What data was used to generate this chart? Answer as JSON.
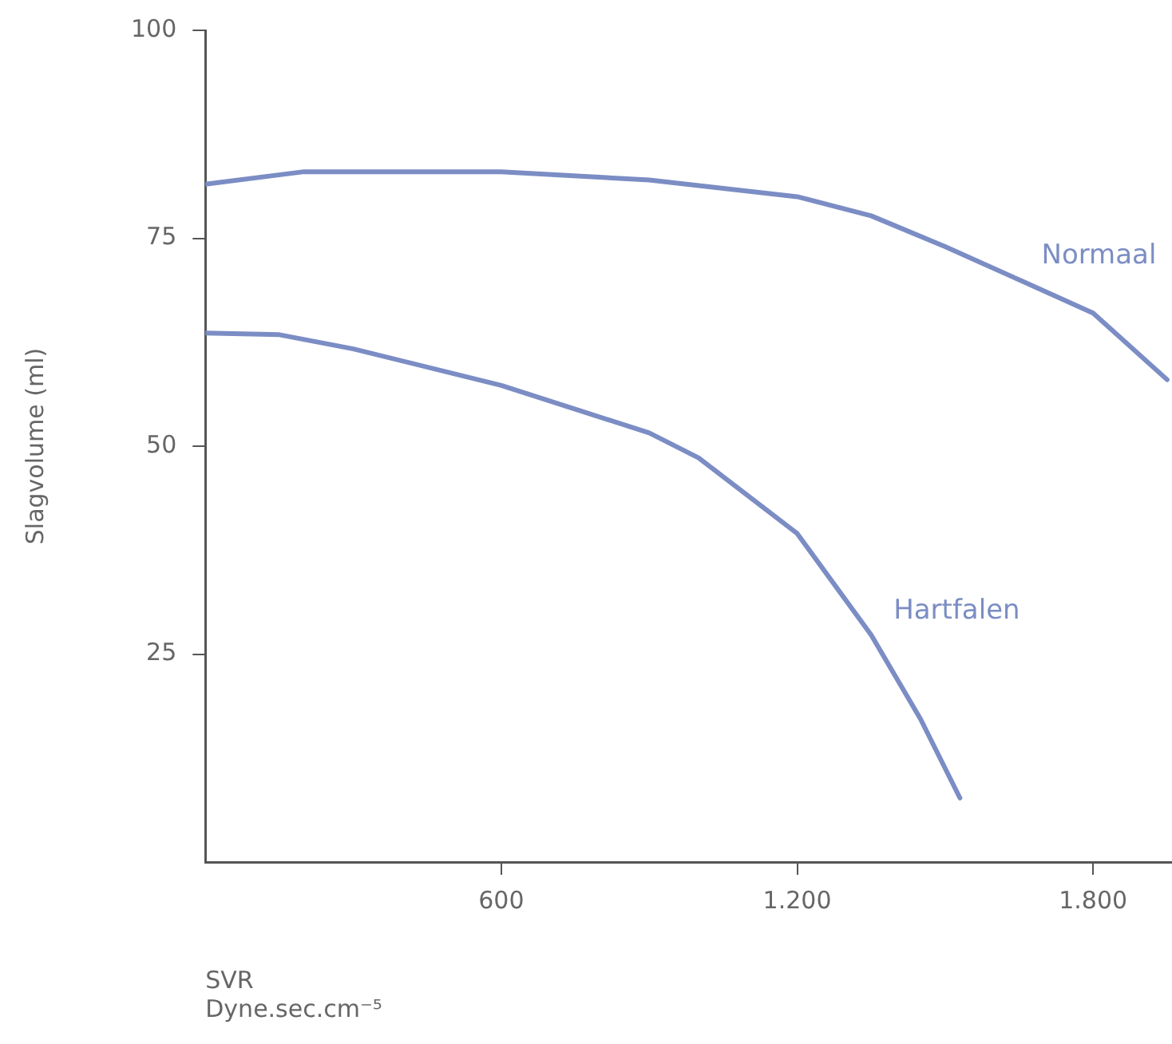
{
  "chart_data": {
    "type": "line",
    "xlabel": "SVR\nDyne.sec.cm⁻⁵",
    "ylabel": "Slagvolume (ml)",
    "xlim": [
      0,
      1960
    ],
    "xticks": [
      {
        "value": 600,
        "label": "600"
      },
      {
        "value": 1200,
        "label": "1.200"
      },
      {
        "value": 1800,
        "label": "1.800"
      }
    ],
    "ylim": [
      0,
      100
    ],
    "yticks": [
      25,
      50,
      75,
      100
    ],
    "grid": false,
    "legend": false,
    "marker": "none",
    "line_style": "solid",
    "series": [
      {
        "name": "Normaal",
        "color": "#7b8dc4",
        "x": [
          0,
          200,
          600,
          900,
          1200,
          1350,
          1500,
          1650,
          1800,
          1950
        ],
        "values": [
          81.5,
          83,
          83,
          82,
          80,
          77.7,
          74,
          70,
          66,
          58
        ]
      },
      {
        "name": "Hartfalen",
        "color": "#7b8dc4",
        "x": [
          0,
          150,
          300,
          600,
          900,
          1000,
          1200,
          1350,
          1450,
          1530
        ],
        "values": [
          63.6,
          63.4,
          61.7,
          57.3,
          51.6,
          48.6,
          39.5,
          27.3,
          17.2,
          7.7
        ]
      }
    ]
  }
}
